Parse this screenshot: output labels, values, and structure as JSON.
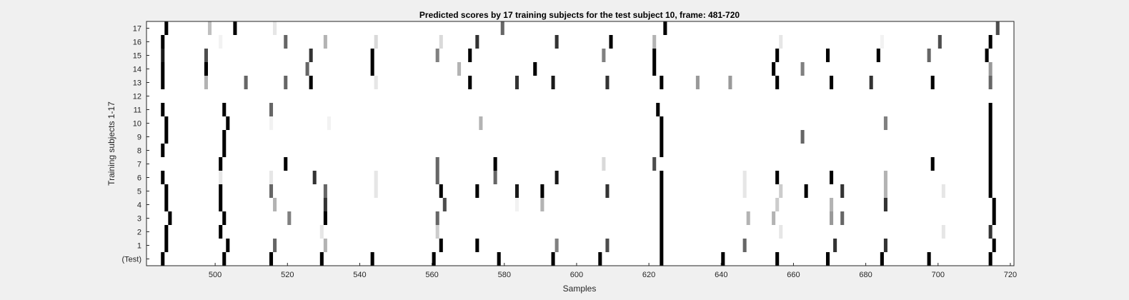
{
  "chart_data": {
    "type": "heatmap",
    "title": "Predicted scores by 17 training subjects for the test subject 10, frame: 481-720",
    "xlabel": "Samples",
    "ylabel": "Training subjects 1-17",
    "xlim": [
      481,
      720
    ],
    "x_ticks": [
      500,
      520,
      540,
      560,
      580,
      600,
      620,
      640,
      660,
      680,
      700,
      720
    ],
    "y_labels": [
      "(Test)",
      "1",
      "2",
      "3",
      "4",
      "5",
      "6",
      "7",
      "8",
      "9",
      "10",
      "11",
      "12",
      "13",
      "14",
      "15",
      "16",
      "17"
    ],
    "colormap": "gray (1 = black, 0 = white)",
    "rows": [
      {
        "label": "(Test)",
        "cells": [
          [
            485,
            1
          ],
          [
            502,
            1
          ],
          [
            515,
            1
          ],
          [
            529,
            1
          ],
          [
            543,
            1
          ],
          [
            560,
            1
          ],
          [
            578,
            1
          ],
          [
            593,
            1
          ],
          [
            606,
            1
          ],
          [
            623,
            1
          ],
          [
            640,
            1
          ],
          [
            655,
            1
          ],
          [
            669,
            1
          ],
          [
            684,
            1
          ],
          [
            697,
            1
          ],
          [
            714,
            1
          ]
        ]
      },
      {
        "label": "1",
        "cells": [
          [
            486,
            1
          ],
          [
            503,
            1
          ],
          [
            516,
            0.6
          ],
          [
            530,
            0.3
          ],
          [
            562,
            1
          ],
          [
            572,
            1
          ],
          [
            594,
            0.5
          ],
          [
            608,
            0.7
          ],
          [
            623,
            1
          ],
          [
            646,
            0.6
          ],
          [
            671,
            0.8
          ],
          [
            685,
            0.8
          ],
          [
            715,
            1
          ]
        ]
      },
      {
        "label": "2",
        "cells": [
          [
            486,
            1
          ],
          [
            501,
            1
          ],
          [
            529,
            0.1
          ],
          [
            561,
            0.2
          ],
          [
            623,
            1
          ],
          [
            656,
            0.1
          ],
          [
            701,
            0.1
          ],
          [
            714,
            0.8
          ]
        ]
      },
      {
        "label": "3",
        "cells": [
          [
            487,
            1
          ],
          [
            502,
            1
          ],
          [
            520,
            0.5
          ],
          [
            530,
            1
          ],
          [
            561,
            0.6
          ],
          [
            623,
            1
          ],
          [
            647,
            0.3
          ],
          [
            654,
            0.3
          ],
          [
            670,
            0.4
          ],
          [
            673,
            0.6
          ],
          [
            715,
            1
          ]
        ]
      },
      {
        "label": "4",
        "cells": [
          [
            486,
            1
          ],
          [
            501,
            1
          ],
          [
            516,
            0.3
          ],
          [
            530,
            0.8
          ],
          [
            563,
            0.7
          ],
          [
            583,
            0.05
          ],
          [
            590,
            0.3
          ],
          [
            623,
            1
          ],
          [
            655,
            0.2
          ],
          [
            670,
            0.3
          ],
          [
            685,
            0.8
          ],
          [
            715,
            1
          ]
        ]
      },
      {
        "label": "5",
        "cells": [
          [
            486,
            1
          ],
          [
            501,
            1
          ],
          [
            515,
            0.6
          ],
          [
            530,
            0.6
          ],
          [
            544,
            0.1
          ],
          [
            562,
            1
          ],
          [
            572,
            1
          ],
          [
            583,
            0.9
          ],
          [
            590,
            1
          ],
          [
            608,
            0.8
          ],
          [
            623,
            1
          ],
          [
            646,
            0.1
          ],
          [
            656,
            0.2
          ],
          [
            663,
            1
          ],
          [
            673,
            0.8
          ],
          [
            685,
            0.3
          ],
          [
            701,
            0.1
          ],
          [
            714,
            1
          ]
        ]
      },
      {
        "label": "6",
        "cells": [
          [
            485,
            1
          ],
          [
            501,
            0.1
          ],
          [
            515,
            0.1
          ],
          [
            527,
            0.8
          ],
          [
            544,
            0.1
          ],
          [
            561,
            0.6
          ],
          [
            577,
            0.6
          ],
          [
            594,
            0.9
          ],
          [
            623,
            1
          ],
          [
            646,
            0.1
          ],
          [
            655,
            1
          ],
          [
            670,
            1
          ],
          [
            685,
            0.3
          ],
          [
            714,
            1
          ]
        ]
      },
      {
        "label": "7",
        "cells": [
          [
            501,
            1
          ],
          [
            519,
            1
          ],
          [
            561,
            0.6
          ],
          [
            577,
            1
          ],
          [
            607,
            0.15
          ],
          [
            621,
            0.7
          ],
          [
            698,
            1
          ],
          [
            714,
            1
          ]
        ]
      },
      {
        "label": "8",
        "cells": [
          [
            485,
            1
          ],
          [
            502,
            1
          ],
          [
            623,
            1
          ],
          [
            714,
            1
          ]
        ]
      },
      {
        "label": "9",
        "cells": [
          [
            486,
            1
          ],
          [
            502,
            1
          ],
          [
            623,
            1
          ],
          [
            662,
            0.6
          ],
          [
            714,
            1
          ]
        ]
      },
      {
        "label": "10",
        "cells": [
          [
            486,
            1
          ],
          [
            503,
            1
          ],
          [
            515,
            0.05
          ],
          [
            531,
            0.05
          ],
          [
            573,
            0.3
          ],
          [
            623,
            1
          ],
          [
            685,
            0.5
          ],
          [
            714,
            1
          ]
        ]
      },
      {
        "label": "11",
        "cells": [
          [
            485,
            1
          ],
          [
            502,
            1
          ],
          [
            515,
            0.6
          ],
          [
            622,
            1
          ],
          [
            714,
            1
          ]
        ]
      },
      {
        "label": "12",
        "cells": []
      },
      {
        "label": "13",
        "cells": [
          [
            485,
            1
          ],
          [
            497,
            0.3
          ],
          [
            508,
            0.6
          ],
          [
            519,
            0.6
          ],
          [
            526,
            1
          ],
          [
            544,
            0.1
          ],
          [
            570,
            1
          ],
          [
            583,
            0.8
          ],
          [
            593,
            0.9
          ],
          [
            608,
            0.8
          ],
          [
            623,
            1
          ],
          [
            633,
            0.4
          ],
          [
            642,
            0.4
          ],
          [
            655,
            1
          ],
          [
            670,
            1
          ],
          [
            681,
            0.8
          ],
          [
            698,
            1
          ],
          [
            714,
            0.6
          ]
        ]
      },
      {
        "label": "14",
        "cells": [
          [
            485,
            1
          ],
          [
            497,
            1
          ],
          [
            525,
            0.6
          ],
          [
            543,
            1
          ],
          [
            567,
            0.3
          ],
          [
            588,
            1
          ],
          [
            621,
            1
          ],
          [
            654,
            1
          ],
          [
            662,
            0.5
          ],
          [
            714,
            0.4
          ]
        ]
      },
      {
        "label": "15",
        "cells": [
          [
            485,
            0.9
          ],
          [
            497,
            0.7
          ],
          [
            526,
            0.8
          ],
          [
            543,
            1
          ],
          [
            561,
            0.5
          ],
          [
            570,
            1
          ],
          [
            607,
            0.5
          ],
          [
            621,
            1
          ],
          [
            655,
            1
          ],
          [
            669,
            1
          ],
          [
            683,
            1
          ],
          [
            697,
            0.6
          ],
          [
            713,
            1
          ]
        ]
      },
      {
        "label": "16",
        "cells": [
          [
            485,
            1
          ],
          [
            501,
            0.05
          ],
          [
            519,
            0.6
          ],
          [
            530,
            0.3
          ],
          [
            544,
            0.15
          ],
          [
            562,
            0.15
          ],
          [
            572,
            0.8
          ],
          [
            594,
            0.8
          ],
          [
            609,
            1
          ],
          [
            621,
            0.3
          ],
          [
            656,
            0.1
          ],
          [
            684,
            0.05
          ],
          [
            700,
            0.7
          ],
          [
            714,
            1
          ]
        ]
      },
      {
        "label": "17",
        "cells": [
          [
            486,
            1
          ],
          [
            498,
            0.25
          ],
          [
            505,
            1
          ],
          [
            516,
            0.1
          ],
          [
            579,
            0.6
          ],
          [
            624,
            1
          ],
          [
            716,
            0.7
          ]
        ]
      }
    ]
  }
}
